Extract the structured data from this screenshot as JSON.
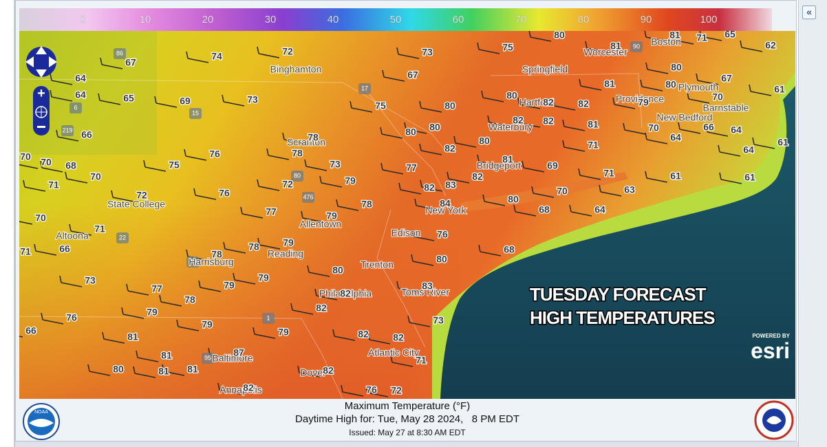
{
  "legend": {
    "ticks": [
      0,
      10,
      20,
      30,
      40,
      50,
      60,
      70,
      80,
      90,
      100
    ]
  },
  "map": {
    "temperatures": [
      67,
      74,
      72,
      73,
      75,
      80,
      81,
      81,
      71,
      65,
      62,
      64,
      64,
      65,
      69,
      73,
      67,
      75,
      80,
      80,
      82,
      82,
      81,
      80,
      80,
      79,
      70,
      67,
      61,
      66,
      78,
      78,
      80,
      80,
      82,
      82,
      81,
      70,
      66,
      64,
      64,
      82,
      80,
      71,
      61,
      64,
      70,
      70,
      68,
      75,
      76,
      73,
      77,
      81,
      69,
      71,
      61,
      61,
      63,
      71,
      70,
      72,
      76,
      72,
      79,
      82,
      83,
      82,
      70,
      80,
      68,
      64,
      84,
      70,
      77,
      79,
      78,
      76,
      71,
      66,
      71,
      78,
      78,
      79,
      68,
      80,
      80,
      73,
      77,
      78,
      79,
      79,
      83,
      82,
      82,
      76,
      66,
      79,
      79,
      79,
      73,
      81,
      82,
      82,
      80,
      81,
      81,
      81,
      87,
      82,
      71,
      82,
      76,
      72
    ],
    "cities": [
      "Binghamton",
      "Worcester",
      "Boston",
      "Springfield",
      "Plymouth",
      "Hartford",
      "Providence",
      "Barnstable",
      "New Bedford",
      "Scranton",
      "Waterbury",
      "Bridgeport",
      "State College",
      "New York",
      "Allentown",
      "Altoona",
      "Edison",
      "Reading",
      "Harrisburg",
      "Trenton",
      "Philadelphia",
      "Toms River",
      "Atlantic City",
      "Baltimore",
      "Dover",
      "Annapolis"
    ],
    "road_shields": [
      "86",
      "90",
      "17",
      "15",
      "219",
      "6",
      "80",
      "476",
      "22",
      "78",
      "1",
      "95"
    ],
    "overlay": [
      "TUESDAY FORECAST",
      "HIGH TEMPERATURES"
    ],
    "powered_by": "POWERED BY",
    "attribution": "esri"
  },
  "footer": {
    "title": "Maximum Temperature (°F)",
    "subtitle": "Daytime High for: Tue, May 28 2024,   8 PM EDT",
    "issued": "Issued: May 27 at 8:30 AM EDT",
    "noaa": "NOAA"
  }
}
